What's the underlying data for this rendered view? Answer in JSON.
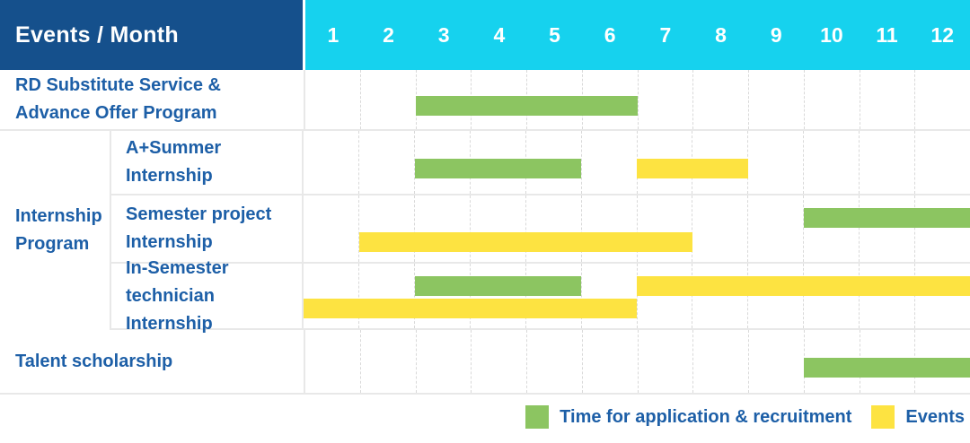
{
  "colors": {
    "header_bg": "#15508c",
    "months_bg": "#16d2ee",
    "label_text": "#1d5fa7",
    "green": "#8cc561",
    "yellow": "#fde341",
    "grid": "#e8e8e8"
  },
  "header": {
    "title": "Events / Month",
    "months": [
      "1",
      "2",
      "3",
      "4",
      "5",
      "6",
      "7",
      "8",
      "9",
      "10",
      "11",
      "12"
    ]
  },
  "chart_data": {
    "type": "gantt",
    "title": "",
    "x": {
      "label": "Month",
      "ticks": [
        1,
        2,
        3,
        4,
        5,
        6,
        7,
        8,
        9,
        10,
        11,
        12
      ],
      "range": [
        1,
        12
      ]
    },
    "legend": [
      "Time for application & recruitment",
      "Events"
    ],
    "legend_position": "bottom-right",
    "grid": "vertical-dashed",
    "tasks": [
      {
        "event": "RD Substitute Service & Advance Offer Program",
        "group": null,
        "application_recruitment_months": [
          [
            3,
            6
          ]
        ],
        "events_months": []
      },
      {
        "event": "A+Summer Internship",
        "group": "Internship Program",
        "application_recruitment_months": [
          [
            3,
            5
          ]
        ],
        "events_months": [
          [
            7,
            8
          ]
        ]
      },
      {
        "event": "Semester project Internship",
        "group": "Internship Program",
        "application_recruitment_months": [
          [
            10,
            12
          ]
        ],
        "events_months": [
          [
            2,
            7
          ]
        ]
      },
      {
        "event": "In-Semester technician Internship",
        "group": "Internship Program",
        "application_recruitment_months": [
          [
            3,
            5
          ]
        ],
        "events_months": [
          [
            7,
            12
          ],
          [
            1,
            6
          ]
        ]
      },
      {
        "event": "Talent scholarship",
        "group": null,
        "application_recruitment_months": [
          [
            10,
            12
          ]
        ],
        "events_months": []
      }
    ]
  },
  "view": {
    "rows": [
      {
        "type": "single",
        "height": 68,
        "label_lines": [
          "RD Substitute Service &",
          "Advance Offer Program"
        ],
        "bars": [
          {
            "start": 3,
            "end": 6,
            "color": "green",
            "lane": "mid"
          }
        ]
      },
      {
        "type": "group",
        "label_lines": [
          "Internship",
          "Program"
        ],
        "children": [
          {
            "height": 72,
            "label_lines": [
              "A+Summer",
              "Internship"
            ],
            "bars": [
              {
                "start": 3,
                "end": 5,
                "color": "green",
                "lane": "mid"
              },
              {
                "start": 7,
                "end": 8,
                "color": "yellow",
                "lane": "mid"
              }
            ]
          },
          {
            "height": 76,
            "label_lines": [
              "Semester project",
              "Internship"
            ],
            "bars": [
              {
                "start": 10,
                "end": 12,
                "color": "green",
                "lane": "top"
              },
              {
                "start": 2,
                "end": 7,
                "color": "yellow",
                "lane": "bottom"
              }
            ]
          },
          {
            "height": 74,
            "label_lines": [
              "In-Semester",
              "technician Internship"
            ],
            "bars": [
              {
                "start": 3,
                "end": 5,
                "color": "green",
                "lane": "top"
              },
              {
                "start": 7,
                "end": 12,
                "color": "yellow",
                "lane": "top"
              },
              {
                "start": 1,
                "end": 6,
                "color": "yellow",
                "lane": "bottom"
              }
            ]
          }
        ]
      },
      {
        "type": "single",
        "height": 72,
        "label_lines": [
          "Talent scholarship"
        ],
        "bars": [
          {
            "start": 10,
            "end": 12,
            "color": "green",
            "lane": "mid"
          }
        ]
      }
    ]
  },
  "legend": {
    "items": [
      {
        "color": "green",
        "label": "Time for application & recruitment"
      },
      {
        "color": "yellow",
        "label": "Events"
      }
    ]
  }
}
